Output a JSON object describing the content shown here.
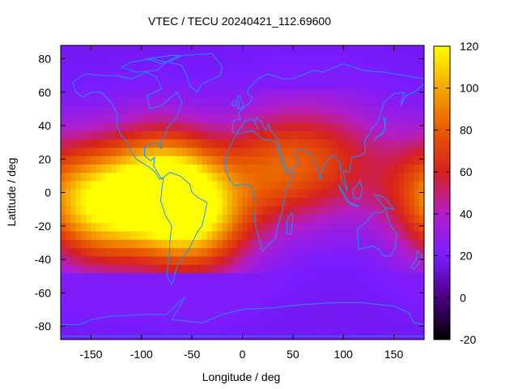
{
  "chart_data": {
    "type": "heatmap",
    "title": "VTEC / TECU 20240421_112.69600",
    "xlabel": "Longitude / deg",
    "ylabel": "Latitude / deg",
    "xlim": [
      -180,
      180
    ],
    "ylim": [
      -88,
      88
    ],
    "xticks": [
      -150,
      -100,
      -50,
      0,
      50,
      100,
      150
    ],
    "yticks": [
      -80,
      -60,
      -40,
      -20,
      0,
      20,
      40,
      60,
      80
    ],
    "colorbar": {
      "range": [
        -20,
        120
      ],
      "ticks": [
        -20,
        0,
        20,
        40,
        60,
        80,
        100,
        120
      ],
      "colors": [
        "#000000",
        "#4b0082",
        "#7a1cff",
        "#b21ec9",
        "#d6201e",
        "#e85a00",
        "#f5a800",
        "#ffff00"
      ]
    },
    "grid": false,
    "overlay": "coastlines",
    "field_model": {
      "background_tecu": 18,
      "peaks": [
        {
          "lon": -80,
          "lat": 5,
          "tecu": 110
        },
        {
          "lon": -45,
          "lat": -15,
          "tecu": 100
        },
        {
          "lon": -140,
          "lat": -10,
          "tecu": 95
        },
        {
          "lon": 30,
          "lat": 15,
          "tecu": 70
        },
        {
          "lon": 90,
          "lat": 20,
          "tecu": 55
        },
        {
          "lon": 178,
          "lat": 5,
          "tecu": 52
        }
      ]
    }
  }
}
